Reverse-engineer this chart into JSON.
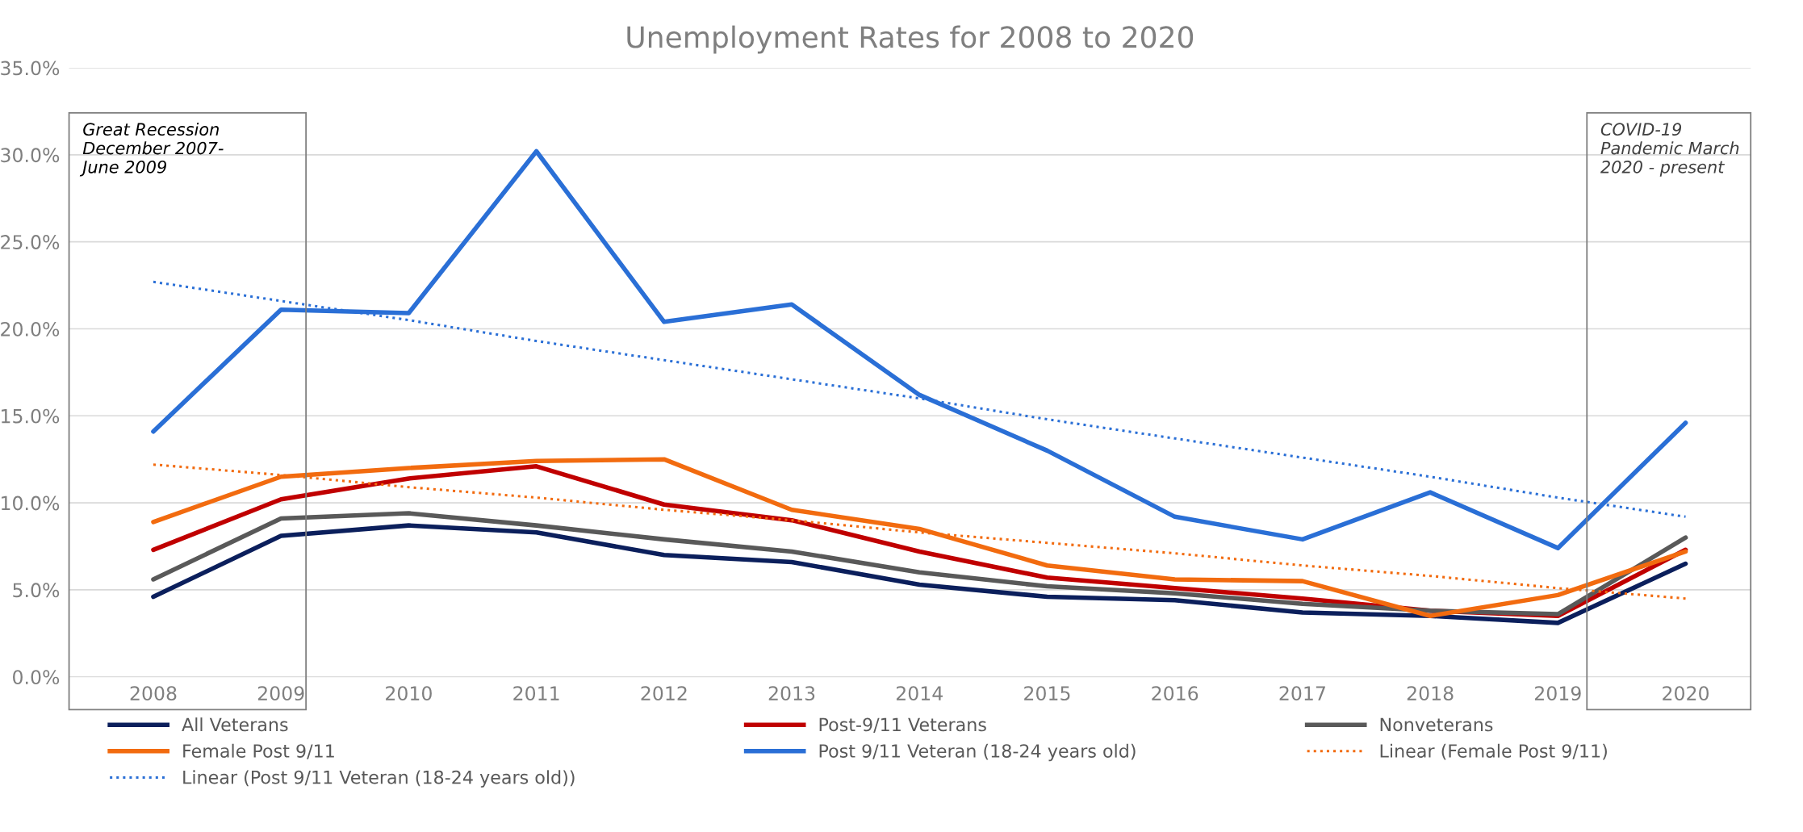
{
  "chart_data": {
    "type": "line",
    "title": "Unemployment Rates for 2008 to 2020",
    "categories": [
      "2008",
      "2009",
      "2010",
      "2011",
      "2012",
      "2013",
      "2014",
      "2015",
      "2016",
      "2017",
      "2018",
      "2019",
      "2020"
    ],
    "series": [
      {
        "name": "All Veterans",
        "color": "#0b1f5c",
        "values": [
          4.6,
          8.1,
          8.7,
          8.3,
          7.0,
          6.6,
          5.3,
          4.6,
          4.4,
          3.7,
          3.5,
          3.1,
          6.5
        ]
      },
      {
        "name": "Post-9/11 Veterans",
        "color": "#c00000",
        "values": [
          7.3,
          10.2,
          11.4,
          12.1,
          9.9,
          9.0,
          7.2,
          5.7,
          5.1,
          4.5,
          3.8,
          3.5,
          7.3
        ]
      },
      {
        "name": "Nonveterans",
        "color": "#595959",
        "values": [
          5.6,
          9.1,
          9.4,
          8.7,
          7.9,
          7.2,
          6.0,
          5.2,
          4.8,
          4.2,
          3.8,
          3.6,
          8.0
        ]
      },
      {
        "name": "Female Post 9/11",
        "color": "#f26b0f",
        "values": [
          8.9,
          11.5,
          12.0,
          12.4,
          12.5,
          9.6,
          8.5,
          6.4,
          5.6,
          5.5,
          3.5,
          4.7,
          7.2
        ]
      },
      {
        "name": "Post 9/11 Veteran (18-24 years old)",
        "color": "#2a6fd6",
        "values": [
          14.1,
          21.1,
          20.9,
          30.2,
          20.4,
          21.4,
          16.2,
          13.0,
          9.2,
          7.9,
          10.6,
          7.4,
          14.6
        ]
      },
      {
        "name": "Linear (Female Post 9/11)",
        "color": "#f26b0f",
        "line_style": "dotted",
        "values": [
          12.2,
          11.6,
          10.9,
          10.3,
          9.6,
          9.0,
          8.3,
          7.7,
          7.1,
          6.4,
          5.8,
          5.1,
          4.5
        ]
      },
      {
        "name": "Linear (Post 9/11 Veteran (18-24 years old))",
        "color": "#2a6fd6",
        "line_style": "dotted",
        "values": [
          22.7,
          21.6,
          20.5,
          19.3,
          18.2,
          17.1,
          16.0,
          14.8,
          13.7,
          12.6,
          11.5,
          10.3,
          9.2
        ]
      }
    ],
    "ylim": [
      0,
      35
    ],
    "yticks": [
      {
        "value": 0,
        "label": "0.0%"
      },
      {
        "value": 5,
        "label": "5.0%"
      },
      {
        "value": 10,
        "label": "10.0%"
      },
      {
        "value": 15,
        "label": "15.0%"
      },
      {
        "value": 20,
        "label": "20.0%"
      },
      {
        "value": 25,
        "label": "25.0%"
      },
      {
        "value": 30,
        "label": "30.0%"
      },
      {
        "value": 35,
        "label": "35.0%"
      }
    ],
    "grid": "y",
    "legend": "bottom",
    "line_style": "solid",
    "marker": "none",
    "annotations": [
      "Great Recession\nDecember 2007-\nJune 2009",
      "COVID-19\nPandemic March\n2020 - present"
    ]
  }
}
